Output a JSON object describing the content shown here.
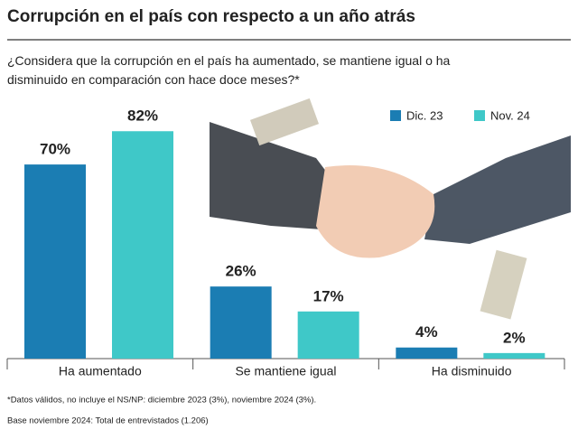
{
  "chart_data": {
    "type": "bar",
    "title": "Corrupción en el país con respecto a un año atrás",
    "subtitle": "¿Considera que la corrupción en el país ha aumentado, se mantiene igual o ha disminuido en comparación con hace doce meses?*",
    "categories": [
      "Ha aumentado",
      "Se mantiene igual",
      "Ha disminuido"
    ],
    "series": [
      {
        "name": "Dic. 23",
        "color": "#1b7db3",
        "values": [
          70,
          26,
          4
        ],
        "value_labels": [
          "70%",
          "26%",
          "4%"
        ]
      },
      {
        "name": "Nov. 24",
        "color": "#3fc8c8",
        "values": [
          82,
          17,
          2
        ],
        "value_labels": [
          "82%",
          "17%",
          "2%"
        ]
      }
    ],
    "notes": [
      "*Datos válidos, no incluye el NS/NP: diciembre 2023 (3%), noviembre 2024 (3%).",
      "Base noviembre 2024: Total de entrevistados (1.206)"
    ]
  }
}
